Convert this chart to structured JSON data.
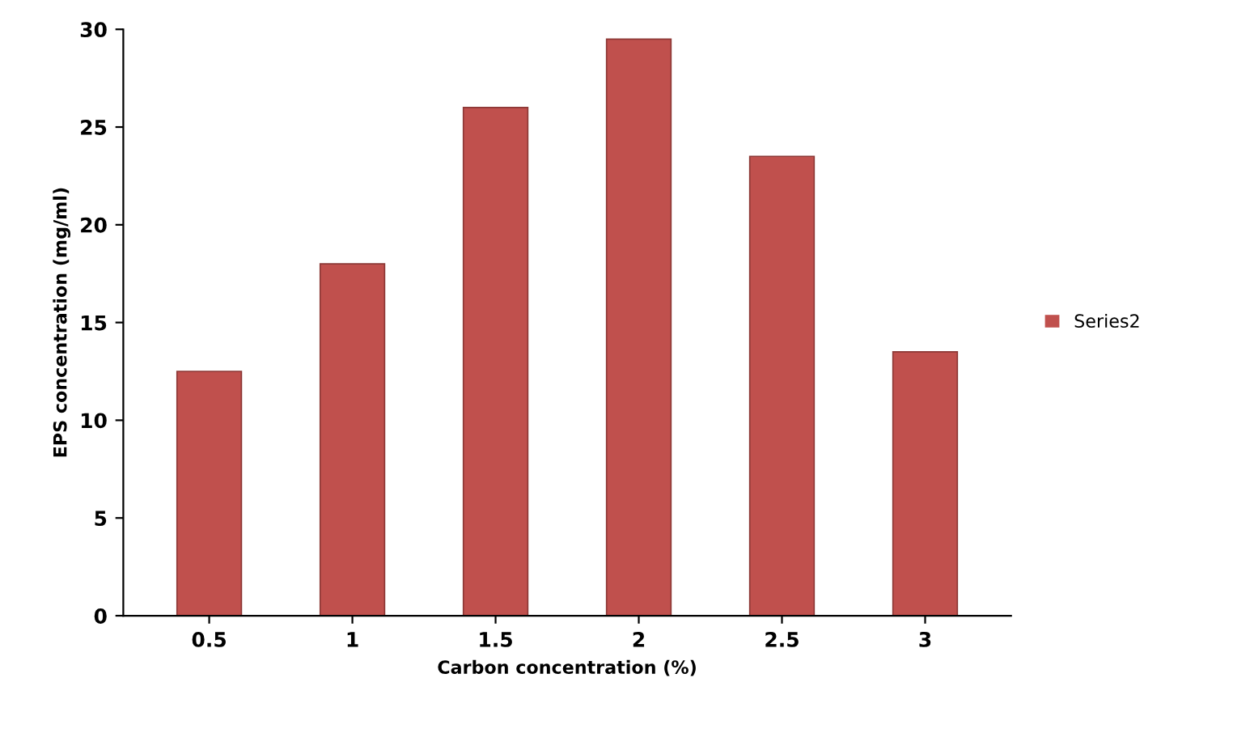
{
  "chart_data": {
    "type": "bar",
    "xlabel": "Carbon concentration (%)",
    "ylabel": "EPS concentration (mg/ml)",
    "categories": [
      "0.5",
      "1",
      "1.5",
      "2",
      "2.5",
      "3"
    ],
    "series": [
      {
        "name": "Series2",
        "color": "#c0504d",
        "values": [
          12.5,
          18,
          26,
          29.5,
          23.5,
          13.5
        ]
      }
    ],
    "ylim": [
      0,
      30
    ],
    "yticks": [
      0,
      5,
      10,
      15,
      20,
      25,
      30
    ],
    "grid": false,
    "legend": "right"
  }
}
